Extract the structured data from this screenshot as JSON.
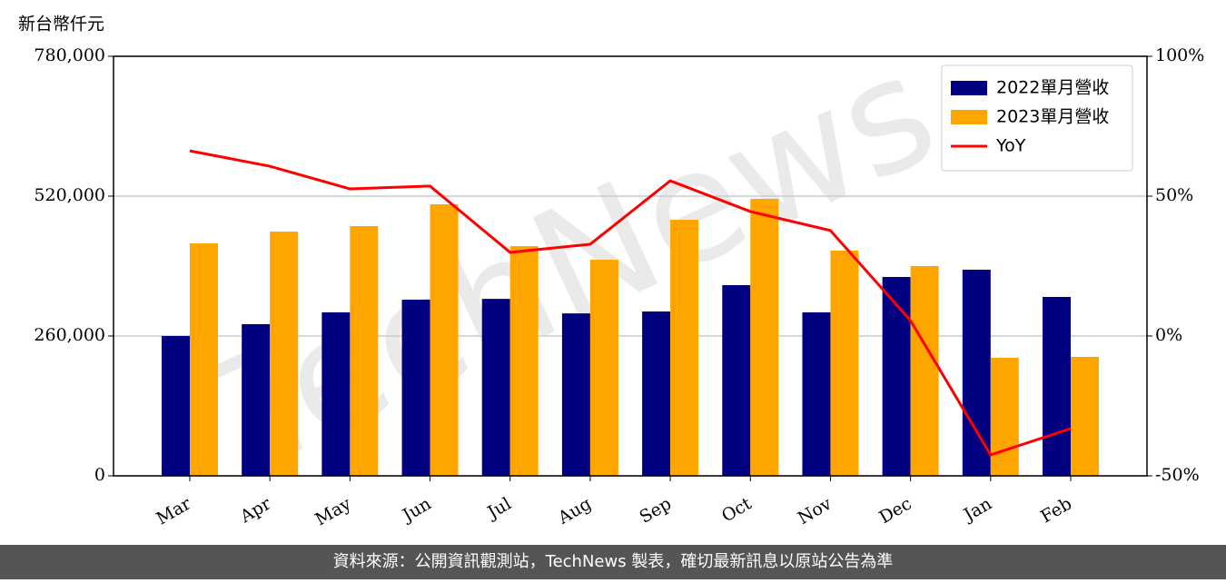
{
  "chart_data": {
    "type": "bar",
    "y_label": "新台幣仟元",
    "watermark": "TechNews",
    "footer": "資料來源：公開資訊觀測站，TechNews 製表，確切最新訊息以原站公告為準",
    "categories": [
      "Mar",
      "Apr",
      "May",
      "Jun",
      "Jul",
      "Aug",
      "Sep",
      "Oct",
      "Nov",
      "Dec",
      "Jan",
      "Feb"
    ],
    "series": [
      {
        "name": "2022單月營收",
        "type": "bar",
        "color": "#000080",
        "values": [
          260000,
          282000,
          304000,
          327500,
          329000,
          302000,
          305600,
          354500,
          304000,
          369700,
          383200,
          332600
        ]
      },
      {
        "name": "2023單月營收",
        "type": "bar",
        "color": "#ffa500",
        "values": [
          432200,
          454100,
          464300,
          504800,
          427100,
          401800,
          476100,
          514900,
          418700,
          390000,
          219500,
          221200
        ]
      },
      {
        "name": "YoY",
        "type": "line",
        "axis": "y2",
        "color": "#ff0000",
        "values": [
          66.2,
          60.7,
          52.6,
          53.6,
          29.9,
          32.8,
          55.5,
          44.5,
          37.7,
          5.5,
          -42.5,
          -33.1
        ]
      }
    ],
    "ylim": [
      0,
      780000
    ],
    "yticks": [
      0,
      {
        "value": 260000,
        "label": "260,000"
      },
      {
        "value": 520000,
        "label": "520,000"
      },
      {
        "value": 780000,
        "label": "780,000"
      }
    ],
    "y2lim": [
      -50,
      100
    ],
    "y2ticks": [
      {
        "value": -50,
        "label": "-50%"
      },
      {
        "value": 0,
        "label": "0%"
      },
      {
        "value": 50,
        "label": "50%"
      },
      {
        "value": 100,
        "label": "100%"
      }
    ],
    "grid": true,
    "legend": "upper right"
  }
}
